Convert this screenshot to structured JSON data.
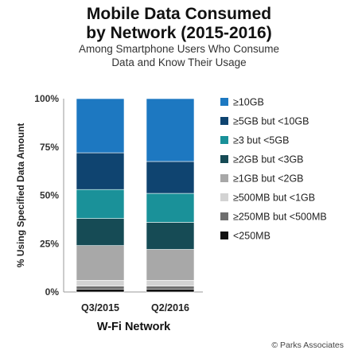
{
  "chart_data": {
    "type": "bar",
    "stacked": true,
    "title_line1": "Mobile Data Consumed",
    "title_line2": "by Network (2015-2016)",
    "subtitle_line1": "Among Smartphone Users Who Consume",
    "subtitle_line2": "Data and Know Their Usage",
    "ylabel": "% Using Specified Data Amount",
    "xlabel": "W-Fi Network",
    "ylim": [
      0,
      100
    ],
    "yticks": [
      {
        "value": 0,
        "label": "0%"
      },
      {
        "value": 25,
        "label": "25%"
      },
      {
        "value": 50,
        "label": "50%"
      },
      {
        "value": 75,
        "label": "75%"
      },
      {
        "value": 100,
        "label": "100%"
      }
    ],
    "categories": [
      "Q3/2015",
      "Q2/2016"
    ],
    "legend_position": "right",
    "series": [
      {
        "name": "<250MB",
        "color": "#111111",
        "values": [
          1.5,
          1.5
        ]
      },
      {
        "name": "≥250MB but <500MB",
        "color": "#6e6e6e",
        "values": [
          1.5,
          1.5
        ]
      },
      {
        "name": "≥500MB but <1GB",
        "color": "#d3d3d3",
        "values": [
          3,
          3
        ]
      },
      {
        "name": "≥1GB but <2GB",
        "color": "#a8a8a8",
        "values": [
          18,
          16
        ]
      },
      {
        "name": "≥2GB but <3GB",
        "color": "#164b55",
        "values": [
          14,
          14
        ]
      },
      {
        "name": "≥3 but <5GB",
        "color": "#1a9199",
        "values": [
          15,
          15
        ]
      },
      {
        "name": "≥5GB but <10GB",
        "color": "#0f4470",
        "values": [
          19,
          16.5
        ]
      },
      {
        "name": "≥10GB",
        "color": "#1d78c1",
        "values": [
          28,
          32.5
        ]
      }
    ]
  },
  "credit": "© Parks Associates"
}
